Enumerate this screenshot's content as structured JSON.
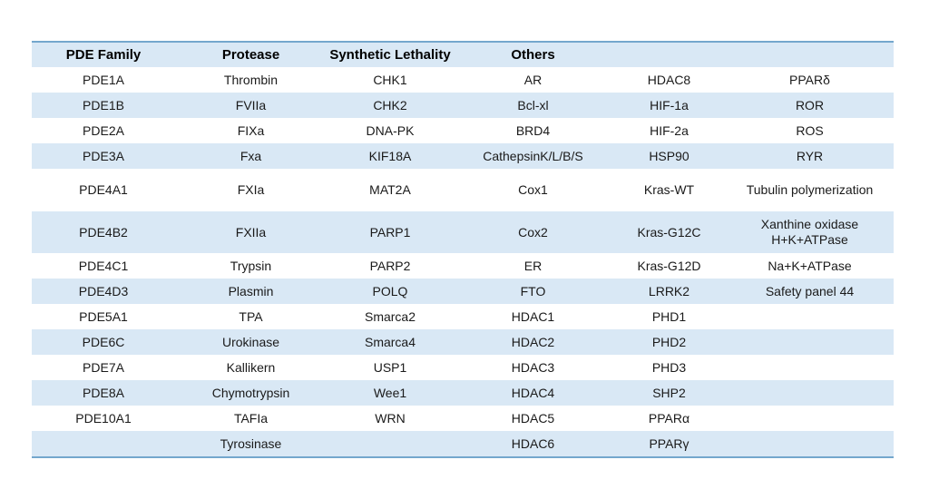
{
  "colors": {
    "row_shade": "#d9e8f5",
    "table_border": "#74a7cd",
    "text": "#1a1a1a"
  },
  "table": {
    "headers": [
      "PDE Family",
      "Protease",
      "Synthetic Lethality",
      "Others",
      "",
      ""
    ],
    "rows": [
      {
        "shade": false,
        "tall": false,
        "cells": [
          "PDE1A",
          "Thrombin",
          "CHK1",
          "AR",
          "HDAC8",
          "PPARδ"
        ]
      },
      {
        "shade": true,
        "tall": false,
        "cells": [
          "PDE1B",
          "FVIIa",
          "CHK2",
          "Bcl-xl",
          "HIF-1a",
          "ROR"
        ]
      },
      {
        "shade": false,
        "tall": false,
        "cells": [
          "PDE2A",
          "FIXa",
          "DNA-PK",
          "BRD4",
          "HIF-2a",
          "ROS"
        ]
      },
      {
        "shade": true,
        "tall": false,
        "cells": [
          "PDE3A",
          "Fxa",
          "KIF18A",
          "CathepsinK/L/B/S",
          "HSP90",
          "RYR"
        ]
      },
      {
        "shade": false,
        "tall": true,
        "cells": [
          "PDE4A1",
          "FXIa",
          "MAT2A",
          "Cox1",
          "Kras-WT",
          "Tubulin polymerization"
        ]
      },
      {
        "shade": true,
        "tall": true,
        "cells": [
          "PDE4B2",
          "FXIIa",
          "PARP1",
          "Cox2",
          "Kras-G12C",
          "Xanthine oxidase\nH+K+ATPase"
        ]
      },
      {
        "shade": false,
        "tall": false,
        "cells": [
          "PDE4C1",
          "Trypsin",
          "PARP2",
          "ER",
          "Kras-G12D",
          "Na+K+ATPase"
        ]
      },
      {
        "shade": true,
        "tall": false,
        "cells": [
          "PDE4D3",
          "Plasmin",
          "POLQ",
          "FTO",
          "LRRK2",
          "Safety panel 44"
        ]
      },
      {
        "shade": false,
        "tall": false,
        "cells": [
          "PDE5A1",
          "TPA",
          "Smarca2",
          "HDAC1",
          "PHD1",
          ""
        ]
      },
      {
        "shade": true,
        "tall": false,
        "cells": [
          "PDE6C",
          "Urokinase",
          "Smarca4",
          "HDAC2",
          "PHD2",
          ""
        ]
      },
      {
        "shade": false,
        "tall": false,
        "cells": [
          "PDE7A",
          "Kallikern",
          "USP1",
          "HDAC3",
          "PHD3",
          ""
        ]
      },
      {
        "shade": true,
        "tall": false,
        "cells": [
          "PDE8A",
          "Chymotrypsin",
          "Wee1",
          "HDAC4",
          "SHP2",
          ""
        ]
      },
      {
        "shade": false,
        "tall": false,
        "cells": [
          "PDE10A1",
          "TAFIa",
          "WRN",
          "HDAC5",
          "PPARα",
          ""
        ]
      },
      {
        "shade": true,
        "tall": false,
        "cells": [
          "",
          "Tyrosinase",
          "",
          "HDAC6",
          "PPARγ",
          ""
        ]
      }
    ]
  }
}
